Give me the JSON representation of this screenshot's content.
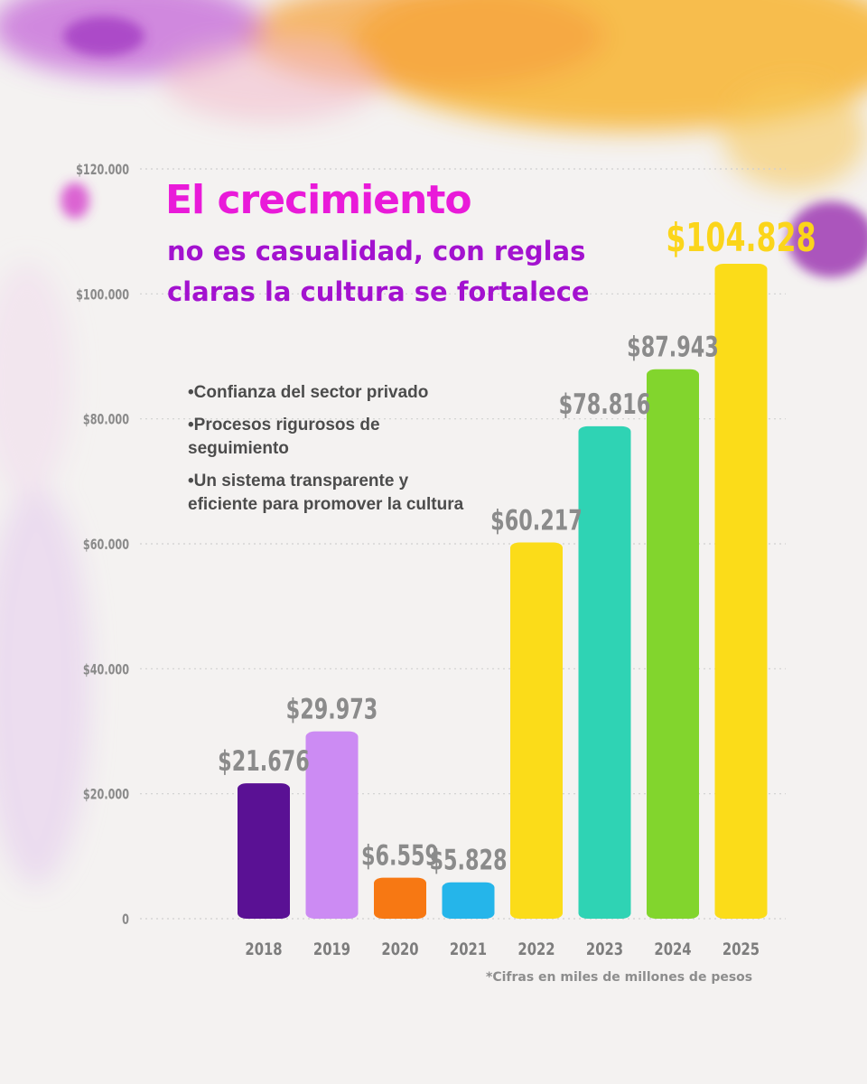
{
  "title": "El crecimiento",
  "subtitle": "no es casualidad, con reglas claras la cultura se fortalece",
  "bullets": [
    "Confianza del sector privado",
    "Procesos rigurosos de seguimiento",
    "Un sistema transparente y eficiente para promover la cultura"
  ],
  "footnote": "*Cifras en miles de millones de pesos",
  "chart_data": {
    "type": "bar",
    "categories": [
      "2018",
      "2019",
      "2020",
      "2021",
      "2022",
      "2023",
      "2024",
      "2025"
    ],
    "values": [
      21676,
      29973,
      6559,
      5828,
      60217,
      78816,
      87943,
      104828
    ],
    "value_labels": [
      "$21.676",
      "$29.973",
      "$6.559",
      "$5.828",
      "$60.217",
      "$78.816",
      "$87.943",
      "$104.828"
    ],
    "bar_colors": [
      "#5a1194",
      "#cc8bf3",
      "#f77813",
      "#25b5ea",
      "#fbdc19",
      "#2fd3b4",
      "#82d52d",
      "#fbdc19"
    ],
    "ylim": [
      0,
      120000
    ],
    "yticks": [
      0,
      20000,
      40000,
      60000,
      80000,
      100000,
      120000
    ],
    "ytick_labels": [
      "0",
      "$20.000",
      "$40.000",
      "$60.000",
      "$80.000",
      "$100.000",
      "$120.000"
    ],
    "grid": true,
    "legend": "none",
    "xlabel": "",
    "ylabel": ""
  }
}
